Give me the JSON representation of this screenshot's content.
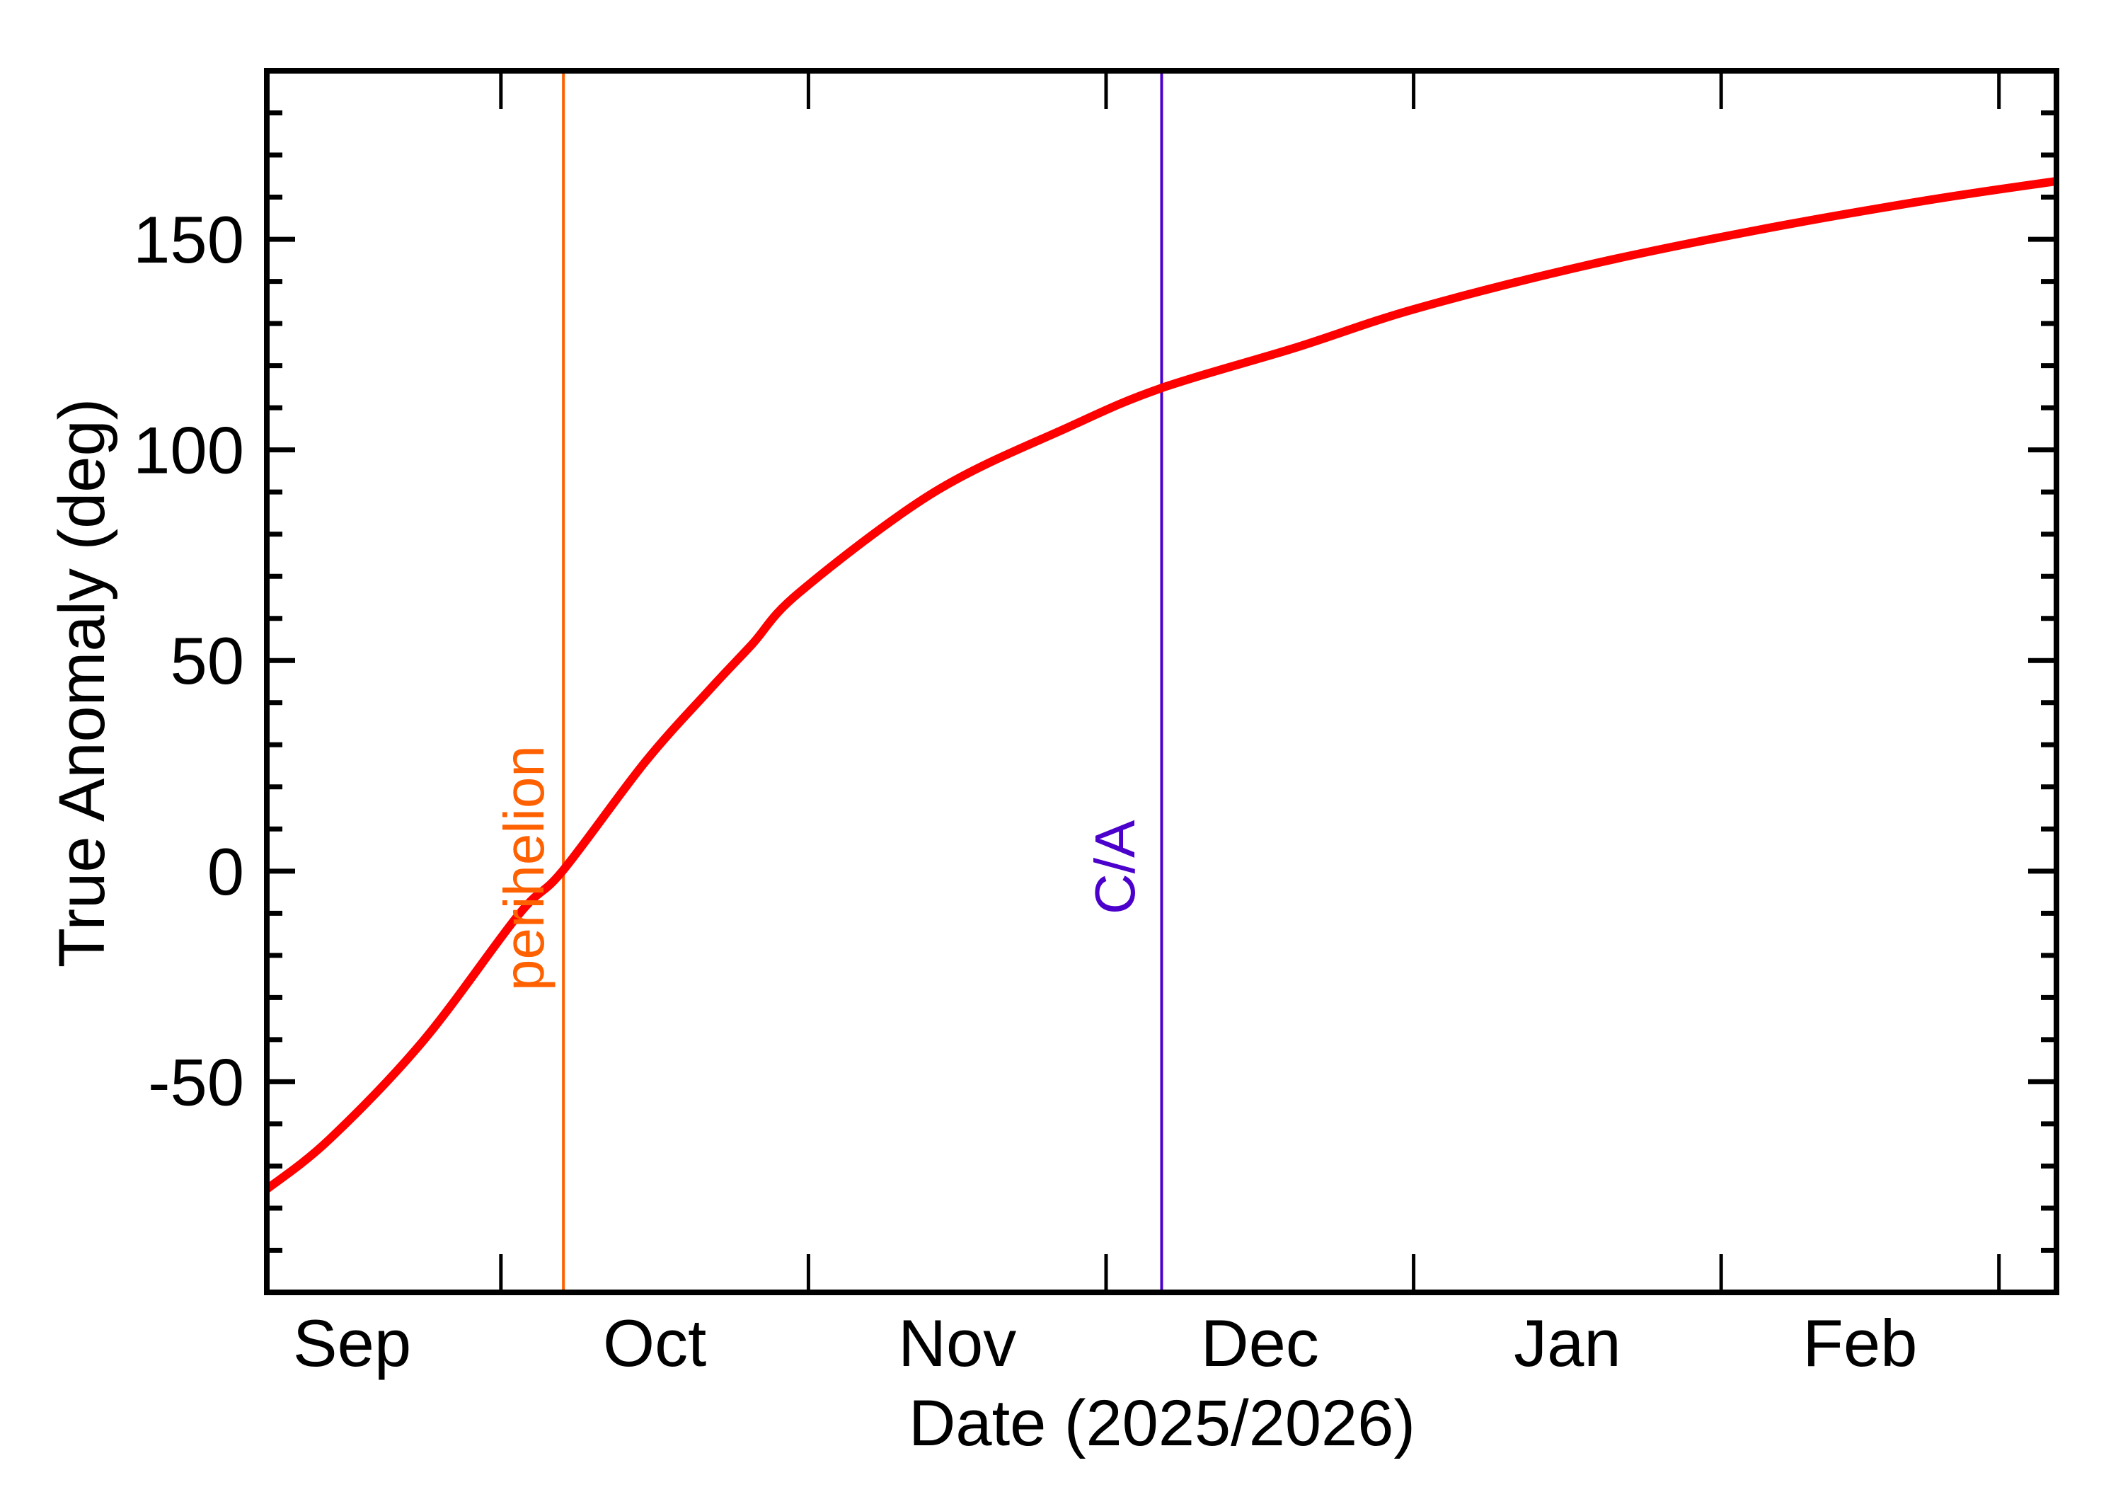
{
  "chart_data": {
    "type": "line",
    "title": "",
    "xlabel": "Date (2025/2026)",
    "ylabel": "True Anomaly (deg)",
    "x_origin_date": "2025-09-01",
    "x_unit": "days since x_origin_date",
    "xlim_days": [
      6.4,
      186.8
    ],
    "ylim": [
      -100,
      190
    ],
    "yticks_major": [
      -50,
      0,
      50,
      100,
      150
    ],
    "ytick_labels": [
      "-50",
      "0",
      "50",
      "100",
      "150"
    ],
    "ytick_minor_step": 10,
    "xticks_days": [
      30,
      61,
      91,
      122,
      153,
      181
    ],
    "xtick_dates": [
      "2025-10-01",
      "2025-11-01",
      "2025-12-01",
      "2026-01-01",
      "2026-02-01",
      "2026-03-01"
    ],
    "month_labels": [
      {
        "label": "Sep",
        "center_day": 15
      },
      {
        "label": "Oct",
        "center_day": 45.5
      },
      {
        "label": "Nov",
        "center_day": 76
      },
      {
        "label": "Dec",
        "center_day": 106.5
      },
      {
        "label": "Jan",
        "center_day": 137.5
      },
      {
        "label": "Feb",
        "center_day": 167
      }
    ],
    "grid": false,
    "legend": null,
    "series": [
      {
        "name": "True Anomaly",
        "color": "#ff0000",
        "x_days": [
          6.4,
          12.7,
          22.2,
          31.8,
          36.2,
          44.5,
          51.0,
          55.3,
          60.1,
          73.7,
          87.3,
          96.6,
          110.0,
          122.2,
          139.4,
          156.7,
          173.9,
          186.8
        ],
        "dates": [
          "2025-09-07",
          "2025-09-13",
          "2025-09-23",
          "2025-10-02",
          "2025-10-07",
          "2025-10-15",
          "2025-10-22",
          "2025-10-26",
          "2025-10-31",
          "2025-11-13",
          "2025-11-27",
          "2025-12-06",
          "2025-12-19",
          "2025-12-31",
          "2026-01-17",
          "2026-02-03",
          "2026-02-20",
          "2026-03-06"
        ],
        "values": [
          -75.5,
          -63.7,
          -40.2,
          -10.3,
          0,
          25.8,
          43.0,
          53.8,
          66.2,
          90.0,
          105.5,
          114.7,
          124.2,
          133.5,
          143.8,
          152.2,
          159.3,
          163.8
        ]
      }
    ],
    "annotations": [
      {
        "label": "perihelion",
        "x_day": 36.3,
        "date": "2025-10-07",
        "color": "#ff6000",
        "type": "vertical-line"
      },
      {
        "label": "C/A",
        "x_day": 96.6,
        "date": "2025-12-06",
        "color": "#4b00cc",
        "type": "vertical-line"
      }
    ]
  },
  "colors": {
    "curve": "#ff0000",
    "perihelion": "#ff6000",
    "closest_approach": "#4b00cc",
    "axis": "#000000",
    "background": "#ffffff"
  }
}
